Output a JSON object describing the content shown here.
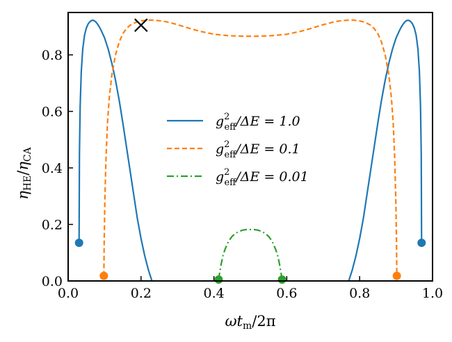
{
  "chart_data": {
    "type": "line",
    "xlabel": "ωt_m/2π",
    "ylabel": "η_HE/η_CA",
    "xlim": [
      0.0,
      1.0
    ],
    "ylim": [
      0.0,
      0.95
    ],
    "xticks": [
      0.0,
      0.2,
      0.4,
      0.6,
      0.8,
      1.0
    ],
    "xtick_labels": [
      "0.0",
      "0.2",
      "0.4",
      "0.6",
      "0.8",
      "1.0"
    ],
    "yticks": [
      0.0,
      0.2,
      0.4,
      0.6,
      0.8
    ],
    "ytick_labels": [
      "0.0",
      "0.2",
      "0.4",
      "0.6",
      "0.8"
    ],
    "grid": false,
    "legend_position": "center",
    "series": [
      {
        "name": "g_eff^2/ΔE = 1.0",
        "legend": {
          "pre": "g",
          "sup": "2",
          "sub": "eff",
          "post": "/ΔE = 1.0"
        },
        "color": "#1f77b4",
        "style": "solid",
        "x": [
          0.03,
          0.031,
          0.033,
          0.036,
          0.04,
          0.045,
          0.05,
          0.055,
          0.06,
          0.065,
          0.07,
          0.075,
          0.08,
          0.085,
          0.09,
          0.1,
          0.11,
          0.12,
          0.13,
          0.14,
          0.15,
          0.16,
          0.17,
          0.18,
          0.19,
          0.2,
          0.21,
          0.22,
          0.23
        ],
        "y": [
          0.135,
          0.45,
          0.62,
          0.74,
          0.82,
          0.87,
          0.895,
          0.91,
          0.918,
          0.922,
          0.922,
          0.918,
          0.91,
          0.9,
          0.888,
          0.86,
          0.82,
          0.77,
          0.71,
          0.64,
          0.56,
          0.475,
          0.39,
          0.305,
          0.22,
          0.15,
          0.09,
          0.04,
          0.0
        ],
        "endpoints": [
          {
            "x": 0.03,
            "y": 0.135
          },
          {
            "x": 0.97,
            "y": 0.135
          }
        ],
        "mirror": true
      },
      {
        "name": "g_eff^2/ΔE = 0.1",
        "legend": {
          "pre": "g",
          "sup": "2",
          "sub": "eff",
          "post": "/ΔE = 0.1"
        },
        "color": "#ff7f0e",
        "style": "dashed",
        "x": [
          0.098,
          0.099,
          0.101,
          0.104,
          0.108,
          0.113,
          0.12,
          0.13,
          0.14,
          0.15,
          0.16,
          0.17,
          0.18,
          0.19,
          0.2,
          0.21,
          0.22,
          0.23,
          0.25,
          0.27,
          0.3,
          0.33,
          0.36,
          0.4,
          0.44,
          0.48,
          0.5
        ],
        "y": [
          0.018,
          0.15,
          0.3,
          0.44,
          0.56,
          0.65,
          0.73,
          0.8,
          0.845,
          0.875,
          0.893,
          0.905,
          0.912,
          0.917,
          0.92,
          0.922,
          0.923,
          0.923,
          0.921,
          0.917,
          0.907,
          0.895,
          0.884,
          0.873,
          0.868,
          0.866,
          0.866
        ],
        "endpoints": [
          {
            "x": 0.098,
            "y": 0.018
          },
          {
            "x": 0.902,
            "y": 0.018
          }
        ],
        "mirror": true
      },
      {
        "name": "g_eff^2/ΔE = 0.01",
        "legend": {
          "pre": "g",
          "sup": "2",
          "sub": "eff",
          "post": "/ΔE = 0.01"
        },
        "color": "#2ca02c",
        "style": "dashdot",
        "x": [
          0.413,
          0.416,
          0.42,
          0.425,
          0.43,
          0.44,
          0.45,
          0.46,
          0.47,
          0.48,
          0.49,
          0.5
        ],
        "y": [
          0.005,
          0.03,
          0.06,
          0.09,
          0.11,
          0.14,
          0.158,
          0.169,
          0.176,
          0.18,
          0.182,
          0.182
        ],
        "endpoints": [
          {
            "x": 0.413,
            "y": 0.005
          },
          {
            "x": 0.587,
            "y": 0.005
          }
        ],
        "mirror": true
      }
    ],
    "annotations": [
      {
        "type": "marker",
        "symbol": "x",
        "x": 0.2,
        "y": 0.905
      }
    ]
  }
}
